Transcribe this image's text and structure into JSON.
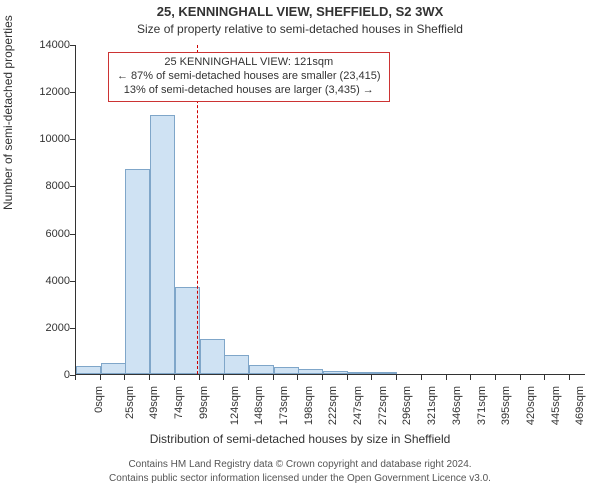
{
  "title_line1": "25, KENNINGHALL VIEW, SHEFFIELD, S2 3WX",
  "title_line2": "Size of property relative to semi-detached houses in Sheffield",
  "chart": {
    "type": "histogram",
    "xlabel": "Distribution of semi-detached houses by size in Sheffield",
    "ylabel": "Number of semi-detached properties",
    "xlim": [
      0,
      510
    ],
    "ylim": [
      0,
      14000
    ],
    "ytick_step": 2000,
    "bar_color": "#cfe2f3",
    "bar_border_color": "#7fa6c9",
    "ref_line_color": "#cc0000",
    "ref_value": 121,
    "background_color": "#ffffff",
    "axis_color": "#333333",
    "bin_width_sqm": 25,
    "bins": [
      {
        "x": 0,
        "label": "0sqm",
        "count": 350
      },
      {
        "x": 25,
        "label": "25sqm",
        "count": 450
      },
      {
        "x": 49,
        "label": "49sqm",
        "count": 8700
      },
      {
        "x": 74,
        "label": "74sqm",
        "count": 11000
      },
      {
        "x": 99,
        "label": "99sqm",
        "count": 3700
      },
      {
        "x": 124,
        "label": "124sqm",
        "count": 1500
      },
      {
        "x": 148,
        "label": "148sqm",
        "count": 800
      },
      {
        "x": 173,
        "label": "173sqm",
        "count": 400
      },
      {
        "x": 198,
        "label": "198sqm",
        "count": 300
      },
      {
        "x": 222,
        "label": "222sqm",
        "count": 200
      },
      {
        "x": 247,
        "label": "247sqm",
        "count": 120
      },
      {
        "x": 272,
        "label": "272sqm",
        "count": 100
      },
      {
        "x": 296,
        "label": "296sqm",
        "count": 80
      },
      {
        "x": 321,
        "label": "321sqm",
        "count": 0
      },
      {
        "x": 346,
        "label": "346sqm",
        "count": 0
      },
      {
        "x": 371,
        "label": "371sqm",
        "count": 0
      },
      {
        "x": 395,
        "label": "395sqm",
        "count": 0
      },
      {
        "x": 420,
        "label": "420sqm",
        "count": 0
      },
      {
        "x": 445,
        "label": "445sqm",
        "count": 0
      },
      {
        "x": 469,
        "label": "469sqm",
        "count": 0
      },
      {
        "x": 494,
        "label": "494sqm",
        "count": 0
      }
    ],
    "yticks": [
      {
        "v": 0,
        "label": "0"
      },
      {
        "v": 2000,
        "label": "2000"
      },
      {
        "v": 4000,
        "label": "4000"
      },
      {
        "v": 6000,
        "label": "6000"
      },
      {
        "v": 8000,
        "label": "8000"
      },
      {
        "v": 10000,
        "label": "10000"
      },
      {
        "v": 12000,
        "label": "12000"
      },
      {
        "v": 14000,
        "label": "14000"
      }
    ]
  },
  "annotation": {
    "line1": "25 KENNINGHALL VIEW: 121sqm",
    "line2": "← 87% of semi-detached houses are smaller (23,415)",
    "line3": "13% of semi-detached houses are larger (3,435) →"
  },
  "footer": {
    "line1": "Contains HM Land Registry data © Crown copyright and database right 2024.",
    "line2": "Contains public sector information licensed under the Open Government Licence v3.0."
  }
}
